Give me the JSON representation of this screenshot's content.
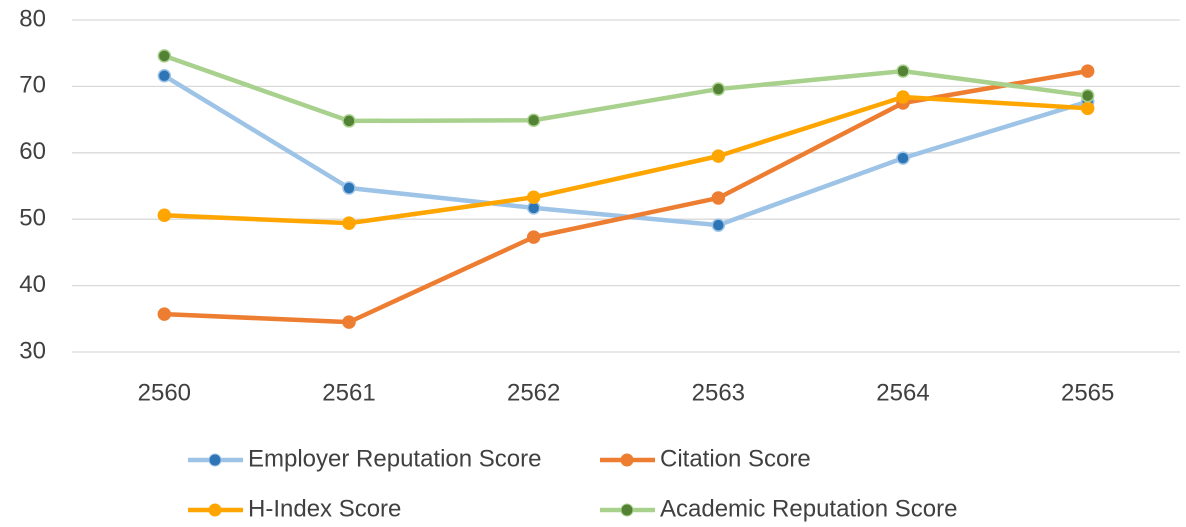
{
  "chart_data": {
    "type": "line",
    "categories": [
      "2560",
      "2561",
      "2562",
      "2563",
      "2564",
      "2565"
    ],
    "series": [
      {
        "name": "Employer Reputation Score",
        "color": "#9dc3e6",
        "marker_color": "#2e75b6",
        "values": [
          71.6,
          54.7,
          51.7,
          49.1,
          59.2,
          67.7
        ]
      },
      {
        "name": "Citation Score",
        "color": "#ed7d31",
        "marker_color": "#ed7d31",
        "values": [
          35.7,
          34.5,
          47.3,
          53.2,
          67.5,
          72.3
        ]
      },
      {
        "name": "H-Index Score",
        "color": "#ffa500",
        "marker_color": "#ffa500",
        "values": [
          50.6,
          49.4,
          53.3,
          59.5,
          68.4,
          66.7
        ]
      },
      {
        "name": "Academic Reputation Score",
        "color": "#a9d18e",
        "marker_color": "#548235",
        "values": [
          74.6,
          64.8,
          64.9,
          69.6,
          72.3,
          68.6
        ]
      }
    ],
    "ylim": [
      30,
      80
    ],
    "yticks": [
      30,
      40,
      50,
      60,
      70,
      80
    ],
    "grid": true,
    "legend": "bottom"
  }
}
